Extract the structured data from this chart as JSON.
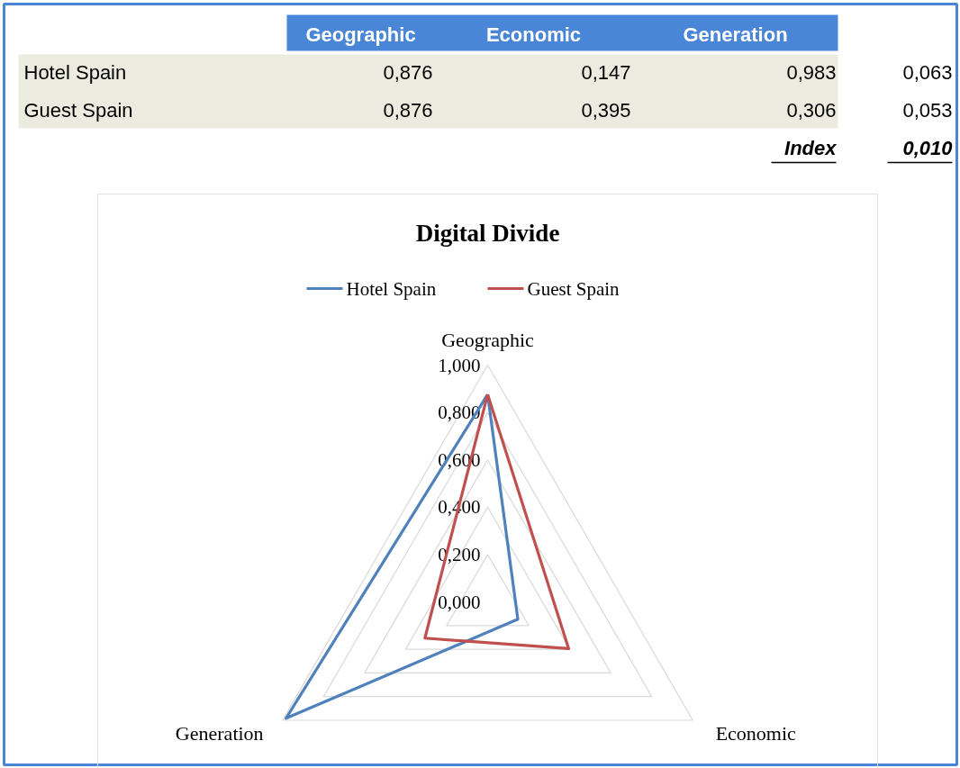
{
  "chart_data": {
    "type": "radar",
    "title": "Digital Divide",
    "categories": [
      "Geographic",
      "Economic",
      "Generation"
    ],
    "series": [
      {
        "name": "Hotel Spain",
        "color": "#4f81bd",
        "values": [
          0.876,
          0.147,
          0.983
        ]
      },
      {
        "name": "Guest Spain",
        "color": "#c0504d",
        "values": [
          0.876,
          0.395,
          0.306
        ]
      }
    ],
    "ylim": [
      0,
      1
    ],
    "yticks": [
      {
        "value": 0,
        "label": "0,000"
      },
      {
        "value": 0.2,
        "label": "0,200"
      },
      {
        "value": 0.4,
        "label": "0,400"
      },
      {
        "value": 0.6,
        "label": "0,600"
      },
      {
        "value": 0.8,
        "label": "0,800"
      },
      {
        "value": 1,
        "label": "1,000"
      }
    ],
    "grid": true,
    "legend": "top",
    "annotations": [
      "0,876",
      "0,147",
      "0,983",
      "0,063",
      "0,876",
      "0,395",
      "0,306",
      "0,053",
      "Index",
      "0,010"
    ]
  }
}
